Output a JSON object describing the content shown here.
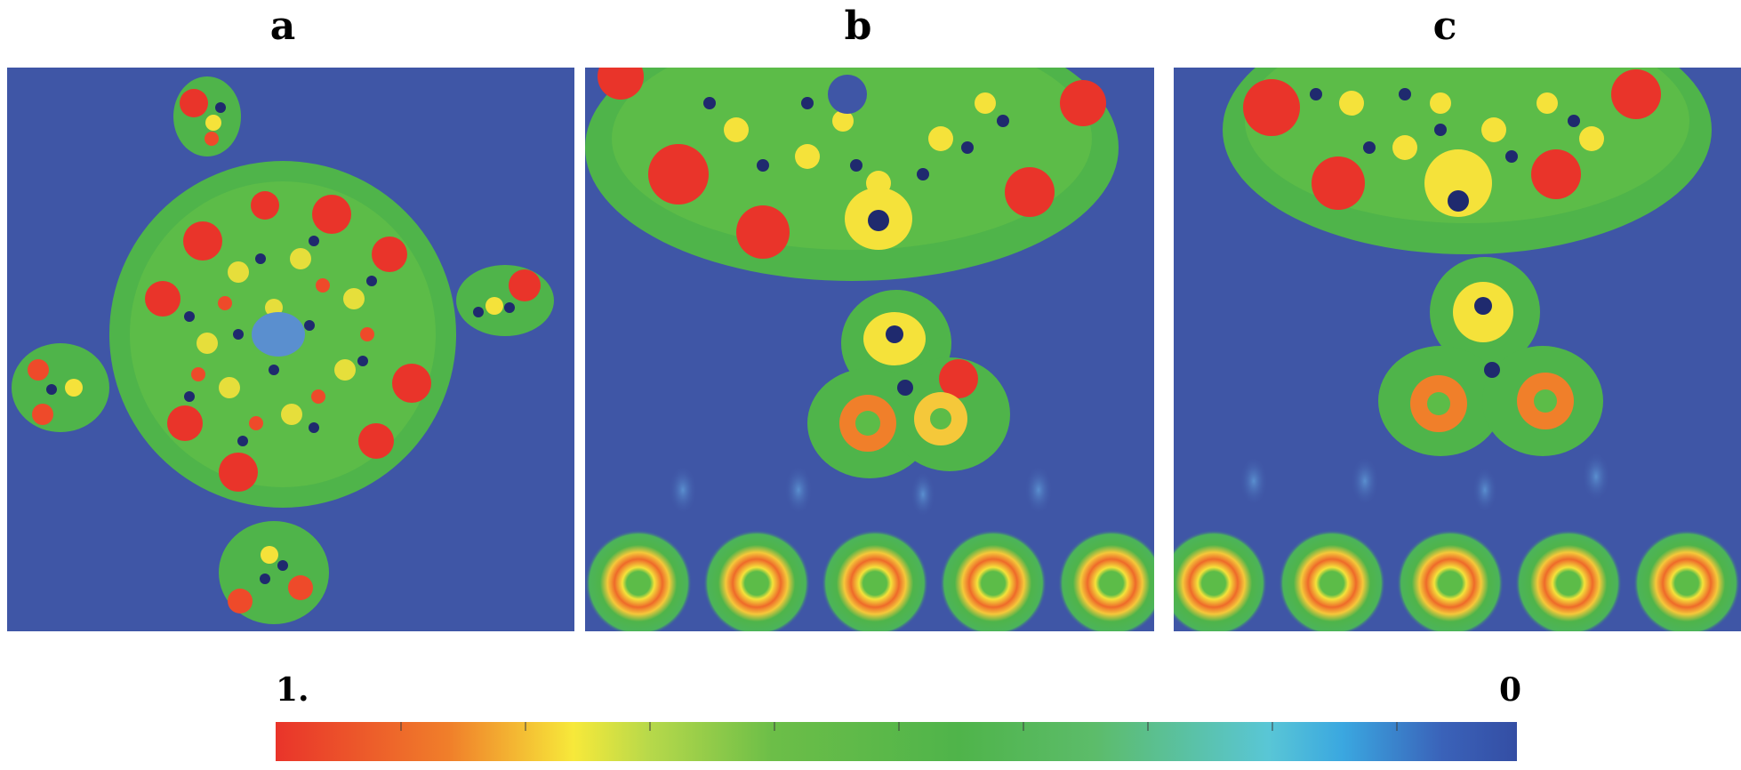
{
  "panels": [
    {
      "label": "a"
    },
    {
      "label": "b"
    },
    {
      "label": "c"
    }
  ],
  "colorbar": {
    "max_label": "1.",
    "min_label": "0",
    "colors": [
      "#e9342a",
      "#f07f2a",
      "#f7e93a",
      "#6cbe48",
      "#59c6d6",
      "#344ea4"
    ]
  },
  "background_color": "#3f56a6"
}
